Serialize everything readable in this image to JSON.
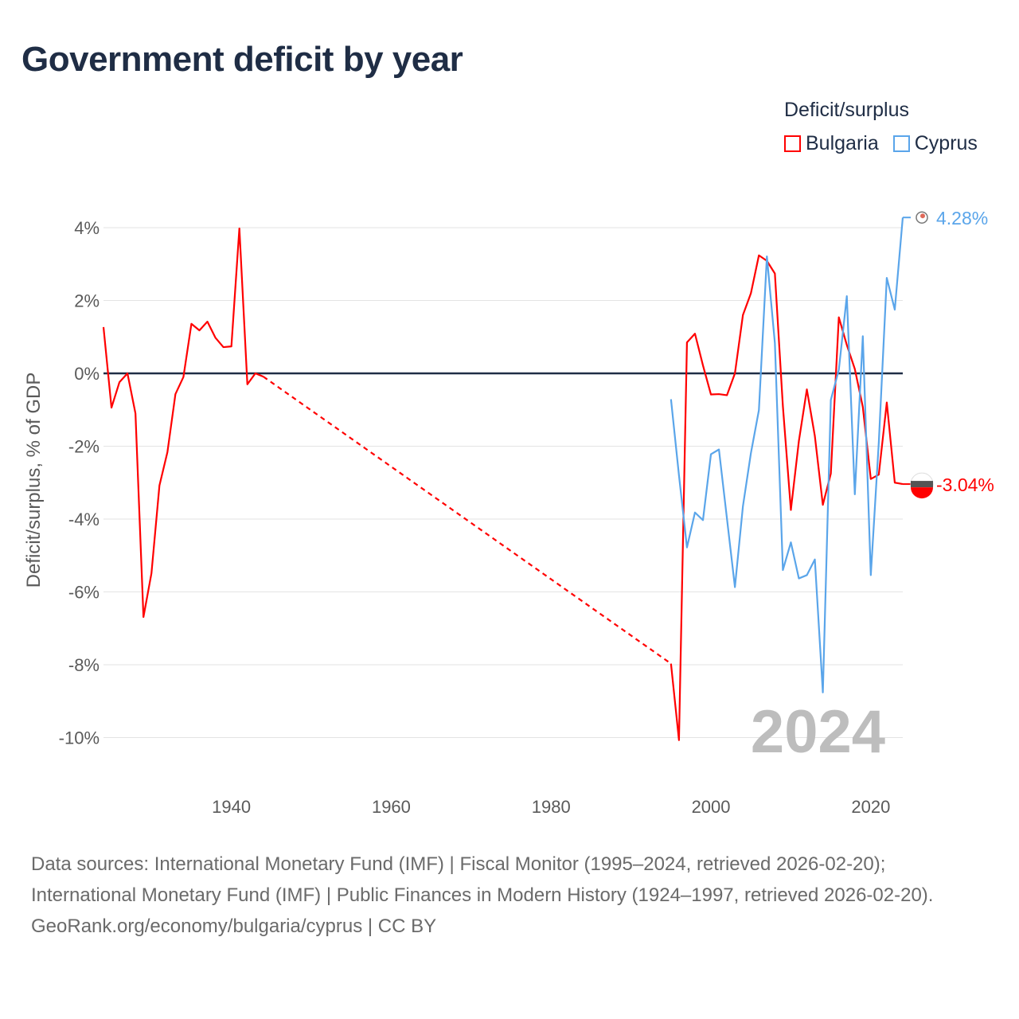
{
  "chart_data": {
    "type": "line",
    "title": "Government deficit by year",
    "xlabel": "",
    "ylabel": "Deficit/surplus, % of GDP",
    "xlim": [
      1924,
      2024
    ],
    "ylim": [
      -10,
      4
    ],
    "x_ticks": [
      "1940",
      "1960",
      "1980",
      "2000",
      "2020"
    ],
    "y_ticks": [
      {
        "value": 4,
        "label": "4%"
      },
      {
        "value": 2,
        "label": "2%"
      },
      {
        "value": 0,
        "label": "0%"
      },
      {
        "value": -2,
        "label": "-2%"
      },
      {
        "value": -4,
        "label": "-4%"
      },
      {
        "value": -6,
        "label": "-6%"
      },
      {
        "value": -8,
        "label": "-8%"
      },
      {
        "value": -10,
        "label": "-10%"
      }
    ],
    "grid": true,
    "legend": {
      "title": "Deficit/surplus",
      "placement": "top-right"
    },
    "year_watermark": "2024",
    "series": [
      {
        "name": "Bulgaria",
        "color": "#ff0000",
        "end_label": "-3.04%",
        "x": [
          1924,
          1925,
          1926,
          1927,
          1928,
          1929,
          1930,
          1931,
          1932,
          1933,
          1934,
          1935,
          1936,
          1937,
          1938,
          1939,
          1940,
          1941,
          1942,
          1943,
          1944,
          1995,
          1996,
          1997,
          1998,
          1999,
          2000,
          2001,
          2002,
          2003,
          2004,
          2005,
          2006,
          2007,
          2008,
          2009,
          2010,
          2011,
          2012,
          2013,
          2014,
          2015,
          2016,
          2017,
          2018,
          2019,
          2020,
          2021,
          2022,
          2023,
          2024
        ],
        "values": [
          1.27,
          -0.94,
          -0.24,
          0,
          -1.1,
          -6.69,
          -5.49,
          -3.08,
          -2.16,
          -0.57,
          -0.1,
          1.36,
          1.18,
          1.42,
          0.98,
          0.72,
          0.74,
          3.98,
          -0.3,
          0,
          -0.09,
          -7.97,
          -10.07,
          0.85,
          1.09,
          0.22,
          -0.58,
          -0.57,
          -0.6,
          0,
          1.6,
          2.2,
          3.24,
          3.09,
          2.74,
          -0.9,
          -3.75,
          -1.86,
          -0.44,
          -1.72,
          -3.61,
          -2.75,
          1.54,
          0.78,
          0.12,
          -0.92,
          -2.9,
          -2.78,
          -0.8,
          -3.0,
          -3.04
        ]
      },
      {
        "name": "Cyprus",
        "color": "#5aa5ea",
        "end_label": "4.28%",
        "x": [
          1995,
          1996,
          1997,
          1998,
          1999,
          2000,
          2001,
          2002,
          2003,
          2004,
          2005,
          2006,
          2007,
          2008,
          2009,
          2010,
          2011,
          2012,
          2013,
          2014,
          2015,
          2016,
          2017,
          2018,
          2019,
          2020,
          2021,
          2022,
          2023,
          2024
        ],
        "values": [
          -0.71,
          -2.8,
          -4.78,
          -3.82,
          -4.03,
          -2.22,
          -2.09,
          -3.98,
          -5.87,
          -3.65,
          -2.19,
          -1.01,
          3.21,
          0.83,
          -5.4,
          -4.64,
          -5.63,
          -5.54,
          -5.11,
          -8.76,
          -0.73,
          0.1,
          2.12,
          -3.32,
          1.02,
          -5.54,
          -1.9,
          2.62,
          1.75,
          4.28
        ]
      }
    ]
  },
  "footer": {
    "sources": "Data sources: International Monetary Fund (IMF) | Fiscal Monitor (1995–2024, retrieved 2026-02-20); International Monetary Fund (IMF) | Public Finances in Modern History (1924–1997, retrieved 2026-02-20).",
    "attribution": "GeoRank.org/economy/bulgaria/cyprus | CC BY"
  }
}
